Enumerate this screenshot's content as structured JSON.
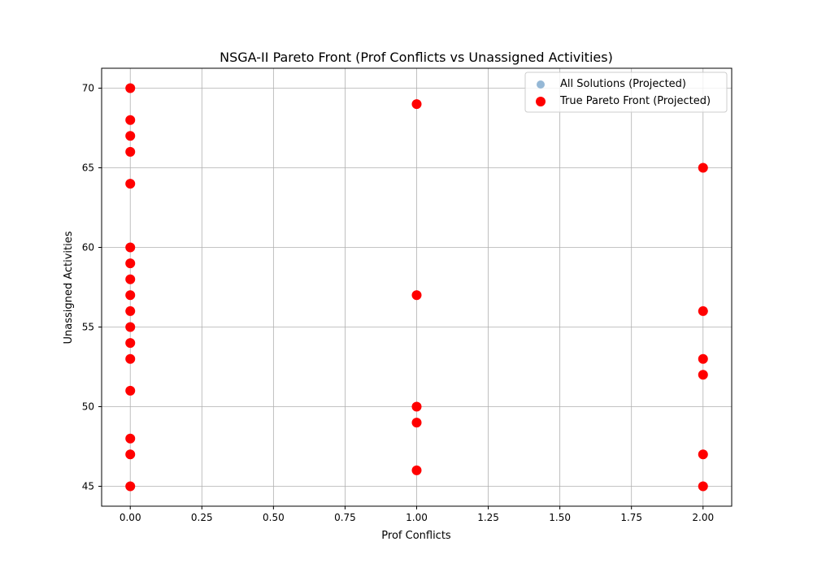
{
  "chart_data": {
    "type": "scatter",
    "title": "NSGA-II Pareto Front (Prof Conflicts vs Unassigned Activities)",
    "xlabel": "Prof Conflicts",
    "ylabel": "Unassigned Activities",
    "xlim": [
      -0.1,
      2.1
    ],
    "ylim": [
      43.75,
      71.25
    ],
    "xticks": [
      0.0,
      0.25,
      0.5,
      0.75,
      1.0,
      1.25,
      1.5,
      1.75,
      2.0
    ],
    "xtick_labels": [
      "0.00",
      "0.25",
      "0.50",
      "0.75",
      "1.00",
      "1.25",
      "1.50",
      "1.75",
      "2.00"
    ],
    "yticks": [
      45,
      50,
      55,
      60,
      65,
      70
    ],
    "ytick_labels": [
      "45",
      "50",
      "55",
      "60",
      "65",
      "70"
    ],
    "grid": true,
    "legend_position": "top-right",
    "series": [
      {
        "name": "All Solutions (Projected)",
        "color": "#7aa6cc",
        "points": [
          [
            0,
            70
          ],
          [
            0,
            68
          ],
          [
            0,
            67
          ],
          [
            0,
            66
          ],
          [
            0,
            64
          ],
          [
            0,
            60
          ],
          [
            0,
            59
          ],
          [
            0,
            58
          ],
          [
            0,
            57
          ],
          [
            0,
            56
          ],
          [
            0,
            55
          ],
          [
            0,
            54
          ],
          [
            0,
            53
          ],
          [
            0,
            51
          ],
          [
            0,
            48
          ],
          [
            0,
            47
          ],
          [
            0,
            45
          ],
          [
            1,
            69
          ],
          [
            1,
            57
          ],
          [
            1,
            50
          ],
          [
            1,
            49
          ],
          [
            1,
            46
          ],
          [
            2,
            65
          ],
          [
            2,
            56
          ],
          [
            2,
            53
          ],
          [
            2,
            52
          ],
          [
            2,
            47
          ],
          [
            2,
            45
          ]
        ]
      },
      {
        "name": "True Pareto Front (Projected)",
        "color": "#ff0000",
        "points": [
          [
            0,
            70
          ],
          [
            0,
            68
          ],
          [
            0,
            67
          ],
          [
            0,
            66
          ],
          [
            0,
            64
          ],
          [
            0,
            60
          ],
          [
            0,
            59
          ],
          [
            0,
            58
          ],
          [
            0,
            57
          ],
          [
            0,
            56
          ],
          [
            0,
            55
          ],
          [
            0,
            54
          ],
          [
            0,
            53
          ],
          [
            0,
            51
          ],
          [
            0,
            48
          ],
          [
            0,
            47
          ],
          [
            0,
            45
          ],
          [
            1,
            69
          ],
          [
            1,
            57
          ],
          [
            1,
            50
          ],
          [
            1,
            49
          ],
          [
            1,
            46
          ],
          [
            2,
            65
          ],
          [
            2,
            56
          ],
          [
            2,
            53
          ],
          [
            2,
            52
          ],
          [
            2,
            47
          ],
          [
            2,
            45
          ]
        ]
      }
    ]
  }
}
